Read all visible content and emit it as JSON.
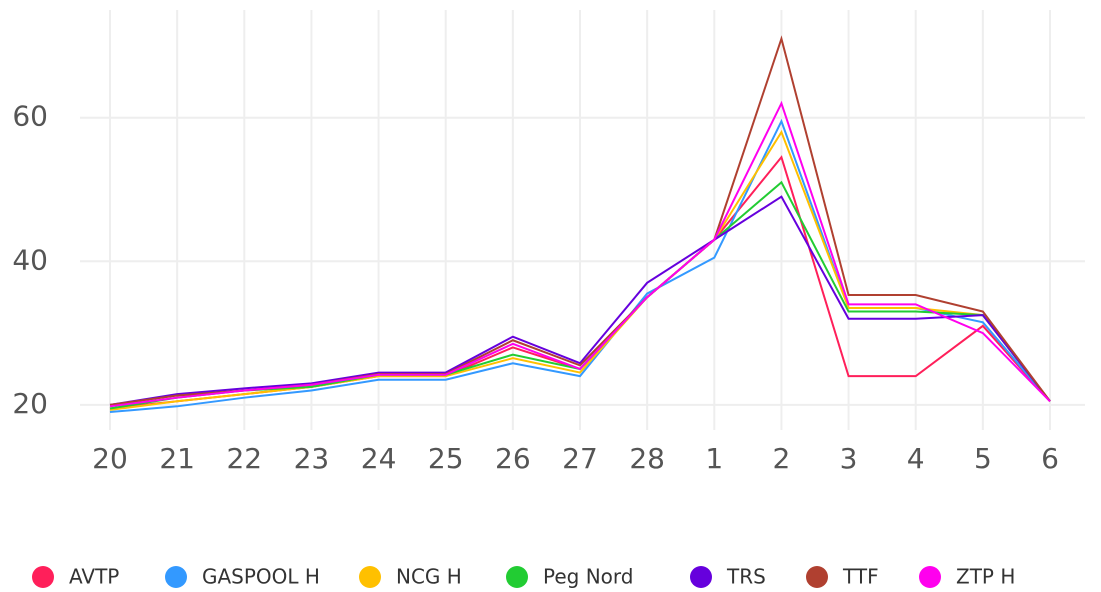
{
  "chart_data": {
    "type": "line",
    "categories": [
      "20",
      "21",
      "22",
      "23",
      "24",
      "25",
      "26",
      "27",
      "28",
      "1",
      "2",
      "3",
      "4",
      "5",
      "6"
    ],
    "series": [
      {
        "name": "AVTP",
        "color": "#ff1f5a",
        "values": [
          19.5,
          20.5,
          21.5,
          22.5,
          24,
          24,
          28,
          25,
          35,
          43,
          54.5,
          24,
          24,
          31,
          20.5
        ]
      },
      {
        "name": "GASPOOL H",
        "color": "#3399ff",
        "values": [
          19,
          19.8,
          21,
          22,
          23.5,
          23.5,
          25.8,
          24,
          35.5,
          40.5,
          59.5,
          33.5,
          33.5,
          31.5,
          20.5
        ]
      },
      {
        "name": "NCG H",
        "color": "#ffc000",
        "values": [
          19.3,
          20.5,
          21.5,
          22.5,
          24,
          24,
          26.5,
          24.5,
          35,
          43,
          58,
          33.5,
          33.5,
          32.5,
          20.5
        ]
      },
      {
        "name": "Peg Nord",
        "color": "#22cc33",
        "values": [
          19.5,
          21,
          22,
          22.5,
          24.2,
          24.2,
          27,
          25,
          35,
          43,
          51,
          33,
          33,
          32.5,
          20.5
        ]
      },
      {
        "name": "TRS",
        "color": "#6600dd",
        "values": [
          20,
          21.5,
          22.3,
          23,
          24.5,
          24.5,
          29.5,
          25.8,
          37,
          43,
          49,
          32,
          32,
          32.5,
          20.5
        ]
      },
      {
        "name": "TTF",
        "color": "#b04030",
        "values": [
          20,
          21.3,
          22,
          22.8,
          24.3,
          24.3,
          29,
          25.5,
          35,
          43,
          71,
          35.3,
          35.3,
          33,
          20.5
        ]
      },
      {
        "name": "ZTP H",
        "color": "#ff00ee",
        "values": [
          19.8,
          21,
          22,
          22.8,
          24.2,
          24.2,
          28.5,
          25,
          35,
          43,
          62,
          34,
          34,
          30,
          20.5
        ]
      }
    ],
    "ylim": [
      16.5,
      75
    ],
    "yticks": [
      20,
      40,
      60
    ],
    "grid": true
  }
}
